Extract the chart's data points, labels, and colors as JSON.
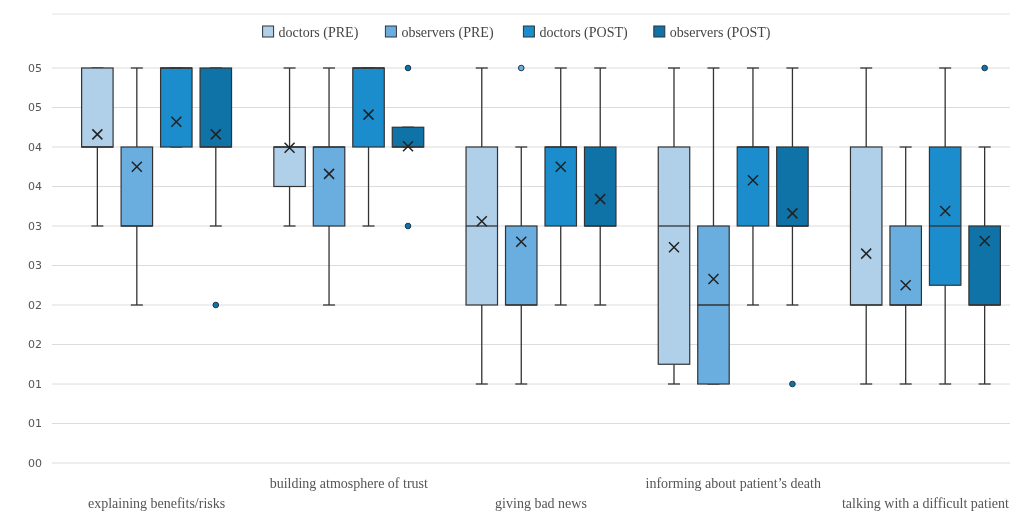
{
  "chart_data": {
    "type": "box",
    "categories": [
      "explaining benefits/risks",
      "building atmosphere of trust",
      "giving bad news",
      "informing about patient’s death",
      "talking with a difficult patient"
    ],
    "ylim": [
      0,
      5
    ],
    "yticks": [
      {
        "value": 0,
        "label": "00"
      },
      {
        "value": 0.5,
        "label": "01"
      },
      {
        "value": 1,
        "label": "01"
      },
      {
        "value": 1.5,
        "label": "02"
      },
      {
        "value": 2,
        "label": "02"
      },
      {
        "value": 2.5,
        "label": "03"
      },
      {
        "value": 3,
        "label": "03"
      },
      {
        "value": 3.5,
        "label": "04"
      },
      {
        "value": 4,
        "label": "04"
      },
      {
        "value": 4.5,
        "label": "05"
      },
      {
        "value": 5,
        "label": "05"
      }
    ],
    "grid": "y",
    "legend": "top",
    "series": [
      {
        "name": "doctors (PRE)",
        "color": "#b0cfe9",
        "boxes": [
          {
            "low": 3,
            "q1": 4,
            "median": 4,
            "q3": 5,
            "high": 5,
            "mean": 4.16
          },
          {
            "low": 3,
            "q1": 3.5,
            "median": 4,
            "q3": 4,
            "high": 5,
            "mean": 3.99
          },
          {
            "low": 1,
            "q1": 2,
            "median": 3,
            "q3": 4,
            "high": 5,
            "mean": 3.06
          },
          {
            "low": 1,
            "q1": 1.25,
            "median": 3,
            "q3": 4,
            "high": 5,
            "mean": 2.73
          },
          {
            "low": 1,
            "q1": 2,
            "median": 2,
            "q3": 4,
            "high": 5,
            "mean": 2.65
          }
        ]
      },
      {
        "name": "observers (PRE)",
        "color": "#6aaee0",
        "boxes": [
          {
            "low": 2,
            "q1": 3,
            "median": 3,
            "q3": 4,
            "high": 5,
            "mean": 3.75
          },
          {
            "low": 2,
            "q1": 3,
            "median": 4,
            "q3": 4,
            "high": 5,
            "mean": 3.66
          },
          {
            "low": 1,
            "q1": 2,
            "median": 2,
            "q3": 3,
            "high": 4,
            "mean": 2.8,
            "outliers": [
              5
            ]
          },
          {
            "low": 1,
            "q1": 1,
            "median": 2,
            "q3": 3,
            "high": 5,
            "mean": 2.33
          },
          {
            "low": 1,
            "q1": 2,
            "median": 2,
            "q3": 3,
            "high": 4,
            "mean": 2.25
          }
        ]
      },
      {
        "name": "doctors (POST)",
        "color": "#1b8ccc",
        "boxes": [
          {
            "low": 4,
            "q1": 4,
            "median": 5,
            "q3": 5,
            "high": 5,
            "mean": 4.32
          },
          {
            "low": 3,
            "q1": 4,
            "median": 5,
            "q3": 5,
            "high": 5,
            "mean": 4.41
          },
          {
            "low": 2,
            "q1": 3,
            "median": 4,
            "q3": 4,
            "high": 5,
            "mean": 3.75
          },
          {
            "low": 2,
            "q1": 3,
            "median": 4,
            "q3": 4,
            "high": 5,
            "mean": 3.58
          },
          {
            "low": 1,
            "q1": 2.25,
            "median": 3,
            "q3": 4,
            "high": 5,
            "mean": 3.19
          }
        ]
      },
      {
        "name": "observers (POST)",
        "color": "#0f73a8",
        "boxes": [
          {
            "low": 3,
            "q1": 4,
            "median": 4,
            "q3": 5,
            "high": 5,
            "mean": 4.16,
            "outliers": [
              2
            ]
          },
          {
            "low": 4,
            "q1": 4,
            "median": 4,
            "q3": 4.25,
            "high": 4.25,
            "mean": 4.01,
            "outliers": [
              5,
              3
            ]
          },
          {
            "low": 2,
            "q1": 3,
            "median": 3,
            "q3": 4,
            "high": 5,
            "mean": 3.34
          },
          {
            "low": 2,
            "q1": 3,
            "median": 3,
            "q3": 4,
            "high": 5,
            "mean": 3.16,
            "outliers": [
              1
            ]
          },
          {
            "low": 1,
            "q1": 2,
            "median": 2,
            "q3": 3,
            "high": 4,
            "mean": 2.81,
            "outliers": [
              5
            ]
          }
        ]
      }
    ]
  }
}
